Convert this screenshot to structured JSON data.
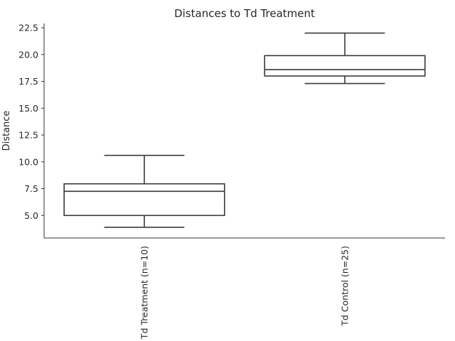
{
  "chart_data": {
    "type": "box",
    "title": "Distances to Td Treatment",
    "xlabel": "",
    "ylabel": "Distance",
    "ylim": [
      2.9,
      22.9
    ],
    "yticks": [
      5.0,
      7.5,
      10.0,
      12.5,
      15.0,
      17.5,
      20.0,
      22.5
    ],
    "ytick_labels": [
      "5.0",
      "7.5",
      "10.0",
      "12.5",
      "15.0",
      "17.5",
      "20.0",
      "22.5"
    ],
    "grid": false,
    "categories": [
      "Td Treatment (n=10)",
      "Td Control (n=25)"
    ],
    "boxes": [
      {
        "name": "Td Treatment (n=10)",
        "whisker_low": 3.9,
        "q1": 5.0,
        "median": 7.25,
        "q3": 7.95,
        "whisker_high": 10.6
      },
      {
        "name": "Td Control (n=25)",
        "whisker_low": 17.3,
        "q1": 18.0,
        "median": 18.6,
        "q3": 19.9,
        "whisker_high": 22.0
      }
    ],
    "colors": {
      "box_stroke": "#3a3a3a",
      "box_fill": "#ffffff",
      "axis": "#333333",
      "text": "#262626"
    }
  }
}
